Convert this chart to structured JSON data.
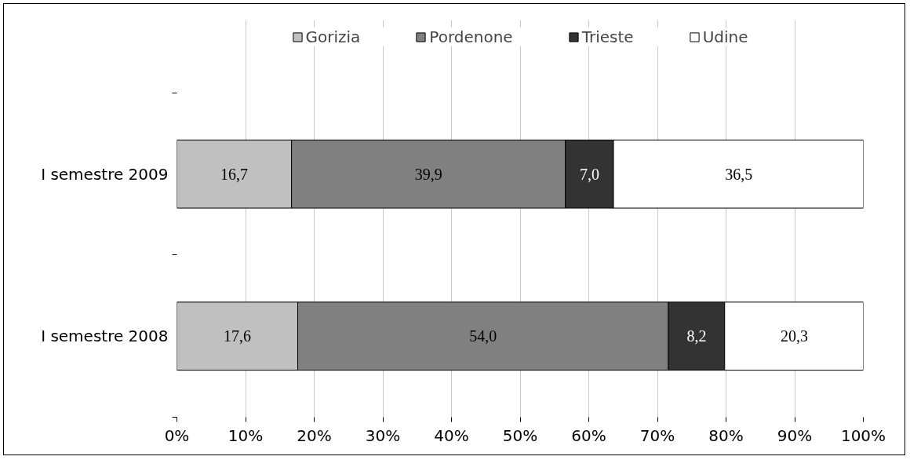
{
  "chart_data": {
    "type": "bar",
    "orientation": "horizontal",
    "stacked": true,
    "categories": [
      "I semestre 2009",
      "I semestre 2008"
    ],
    "series": [
      {
        "name": "Gorizia",
        "color": "#c0c0c0",
        "values": [
          16.7,
          17.6
        ],
        "value_labels": [
          "16,7",
          "17,6"
        ]
      },
      {
        "name": "Pordenone",
        "color": "#808080",
        "values": [
          39.9,
          54.0
        ],
        "value_labels": [
          "39,9",
          "54,0"
        ]
      },
      {
        "name": "Trieste",
        "color": "#333333",
        "values": [
          7.0,
          8.2
        ],
        "value_labels": [
          "7,0",
          "8,2"
        ]
      },
      {
        "name": "Udine",
        "color": "#ffffff",
        "values": [
          36.5,
          20.3
        ],
        "value_labels": [
          "36,5",
          "20,3"
        ]
      }
    ],
    "xlim": [
      0,
      100
    ],
    "xticks": [
      {
        "value": 0,
        "label": "0%"
      },
      {
        "value": 10,
        "label": "10%"
      },
      {
        "value": 20,
        "label": "20%"
      },
      {
        "value": 30,
        "label": "30%"
      },
      {
        "value": 40,
        "label": "40%"
      },
      {
        "value": 50,
        "label": "50%"
      },
      {
        "value": 60,
        "label": "60%"
      },
      {
        "value": 70,
        "label": "70%"
      },
      {
        "value": 80,
        "label": "80%"
      },
      {
        "value": 90,
        "label": "90%"
      },
      {
        "value": 100,
        "label": "100%"
      }
    ],
    "grid": "x",
    "legend": "top"
  }
}
